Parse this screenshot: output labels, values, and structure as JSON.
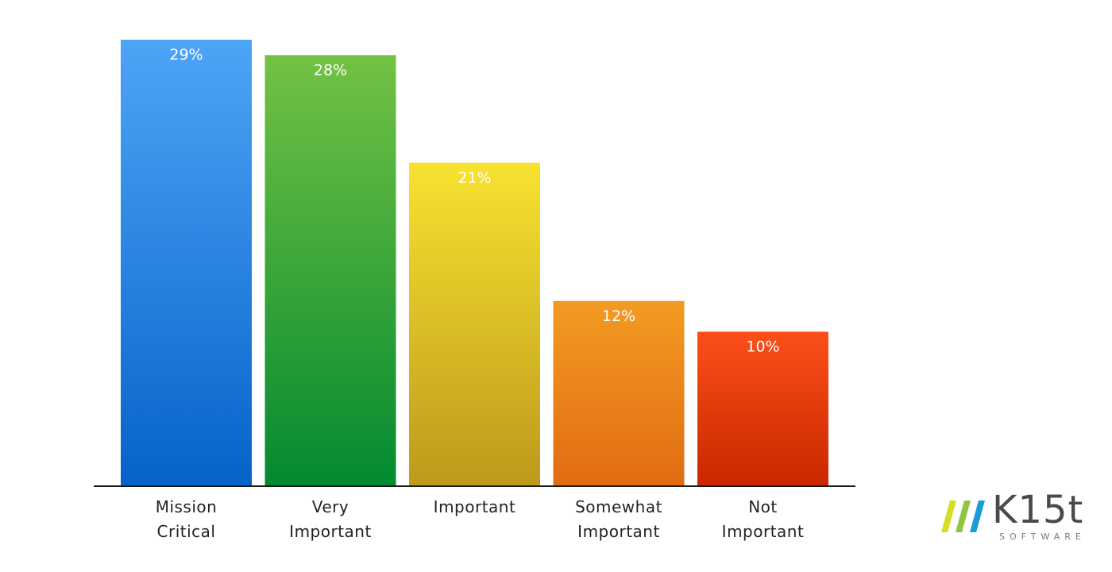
{
  "chart_data": {
    "type": "bar",
    "categories": [
      [
        "Mission",
        "Critical"
      ],
      [
        "Very",
        "Important"
      ],
      [
        "Important"
      ],
      [
        "Somewhat",
        "Important"
      ],
      [
        "Not",
        "Important"
      ]
    ],
    "values": [
      29,
      28,
      21,
      12,
      10
    ],
    "value_labels": [
      "29%",
      "28%",
      "21%",
      "12%",
      "10%"
    ],
    "ylim": [
      0,
      29
    ],
    "grid": false,
    "legend": "none",
    "colors": [
      [
        "#4ea4f6",
        "#0563c9"
      ],
      [
        "#73c244",
        "#038a30"
      ],
      [
        "#f8e230",
        "#bd9a1c"
      ],
      [
        "#f39b23",
        "#e16c12"
      ],
      [
        "#fb4f18",
        "#c92800"
      ]
    ],
    "baseline_color": "#1a1a1a"
  },
  "logo": {
    "name": "K15t",
    "subtitle": "SOFTWARE",
    "slash_colors": [
      "#d6de23",
      "#8dc63f",
      "#1b9bd7"
    ]
  }
}
